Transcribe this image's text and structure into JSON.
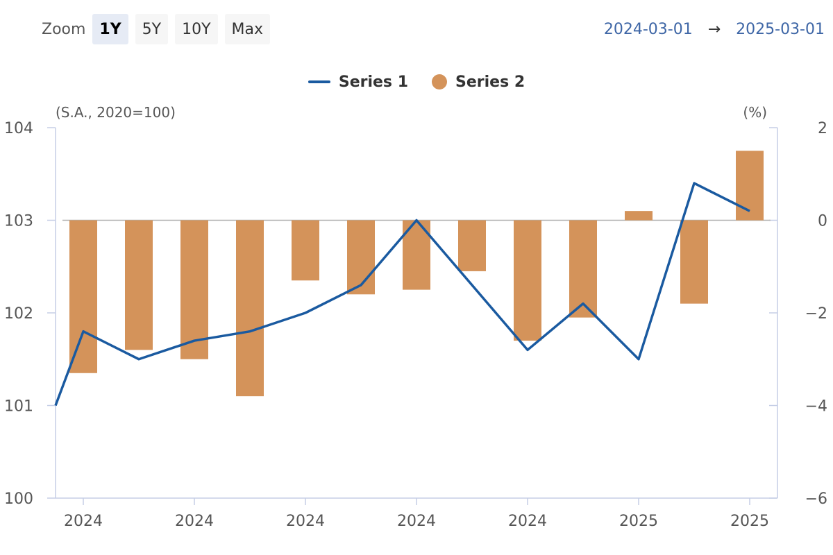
{
  "toolbar": {
    "zoom_label": "Zoom",
    "buttons": [
      "1Y",
      "5Y",
      "10Y",
      "Max"
    ],
    "active": "1Y"
  },
  "range": {
    "start": "2024-03-01",
    "arrow": "→",
    "end": "2025-03-01"
  },
  "colors": {
    "series1": "#1a5aa0",
    "series2": "#d4935a",
    "axis": "#c5cee6",
    "zero_line": "#b0b0b0"
  },
  "chart_data": {
    "type": "bar+line",
    "left_unit": "(S.A., 2020=100)",
    "right_unit": "(%)",
    "categories": [
      "2024",
      "2024",
      "2024",
      "2024",
      "2024",
      "2024",
      "2024",
      "2024",
      "2024",
      "2024",
      "2025",
      "2025",
      "2025"
    ],
    "x_tick_labels": [
      "2024",
      "2024",
      "2024",
      "2024",
      "2024",
      "2025",
      "2025"
    ],
    "y_left": {
      "min": 100,
      "max": 104,
      "ticks": [
        "100",
        "101",
        "102",
        "103",
        "104"
      ]
    },
    "y_right": {
      "min": -6,
      "max": 2,
      "ticks": [
        "−6",
        "−4",
        "−2",
        "0",
        "2"
      ]
    },
    "series": [
      {
        "name": "Series 1",
        "type": "line",
        "axis": "left",
        "x_index": [
          -0.5,
          0,
          1,
          2,
          3,
          4,
          5,
          6,
          8,
          9,
          10,
          11,
          12
        ],
        "values": [
          101.0,
          101.8,
          101.5,
          101.7,
          101.8,
          102.0,
          102.3,
          103.0,
          101.6,
          102.1,
          101.5,
          103.4,
          103.1
        ]
      },
      {
        "name": "Series 2",
        "type": "bar",
        "axis": "right",
        "values": [
          -3.3,
          -2.8,
          -3.0,
          -3.8,
          -1.3,
          -1.6,
          -1.5,
          -1.1,
          -2.6,
          -2.1,
          0.2,
          -1.8,
          1.5
        ]
      }
    ],
    "legend_position": "top-center",
    "grid": false
  }
}
